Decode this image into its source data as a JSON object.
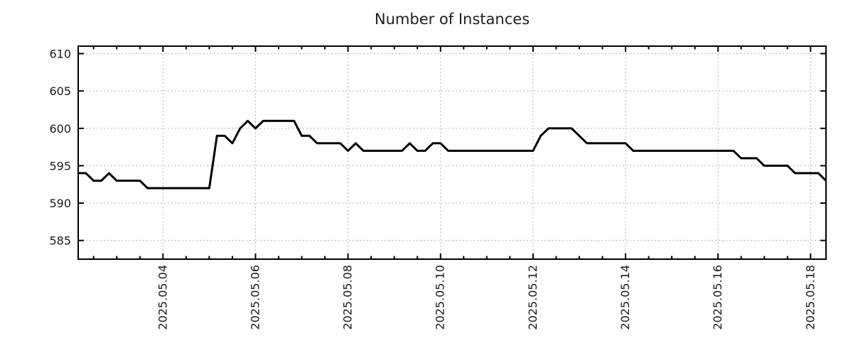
{
  "page": {
    "background": "#ffffff"
  },
  "chart_data": {
    "type": "line",
    "title": "Number of Instances",
    "series_name": "number-of-instances",
    "legend": "none",
    "grid": true,
    "x_axis": {
      "unit": "hours since 2025-05-02 00:00",
      "start_hours": 4,
      "step_hours": 4,
      "xlim_hours": [
        4,
        392
      ],
      "minor_tick_step_hours": 12,
      "major_ticks": [
        {
          "hours": 48,
          "label": "2025.05.04"
        },
        {
          "hours": 96,
          "label": "2025.05.06"
        },
        {
          "hours": 144,
          "label": "2025.05.08"
        },
        {
          "hours": 192,
          "label": "2025.05.10"
        },
        {
          "hours": 240,
          "label": "2025.05.12"
        },
        {
          "hours": 288,
          "label": "2025.05.14"
        },
        {
          "hours": 336,
          "label": "2025.05.16"
        },
        {
          "hours": 384,
          "label": "2025.05.18"
        }
      ]
    },
    "y_axis": {
      "ylim": [
        582.5,
        611
      ],
      "ticks": [
        585,
        590,
        595,
        600,
        605,
        610
      ]
    },
    "values": [
      594,
      594,
      593,
      593,
      594,
      593,
      593,
      593,
      593,
      592,
      592,
      592,
      592,
      592,
      592,
      592,
      592,
      592,
      599,
      599,
      598,
      600,
      601,
      600,
      601,
      601,
      601,
      601,
      601,
      599,
      599,
      598,
      598,
      598,
      598,
      597,
      598,
      597,
      597,
      597,
      597,
      597,
      597,
      598,
      597,
      597,
      598,
      598,
      597,
      597,
      597,
      597,
      597,
      597,
      597,
      597,
      597,
      597,
      597,
      597,
      599,
      600,
      600,
      600,
      600,
      599,
      598,
      598,
      598,
      598,
      598,
      598,
      597,
      597,
      597,
      597,
      597,
      597,
      597,
      597,
      597,
      597,
      597,
      597,
      597,
      597,
      596,
      596,
      596,
      595,
      595,
      595,
      595,
      594,
      594,
      594,
      594,
      593
    ]
  },
  "style": {
    "line_color": "#000000",
    "line_width": 3,
    "grid_color": "#b4b4b4",
    "axis_color": "#000000",
    "text_color": "#1a1a1a"
  }
}
